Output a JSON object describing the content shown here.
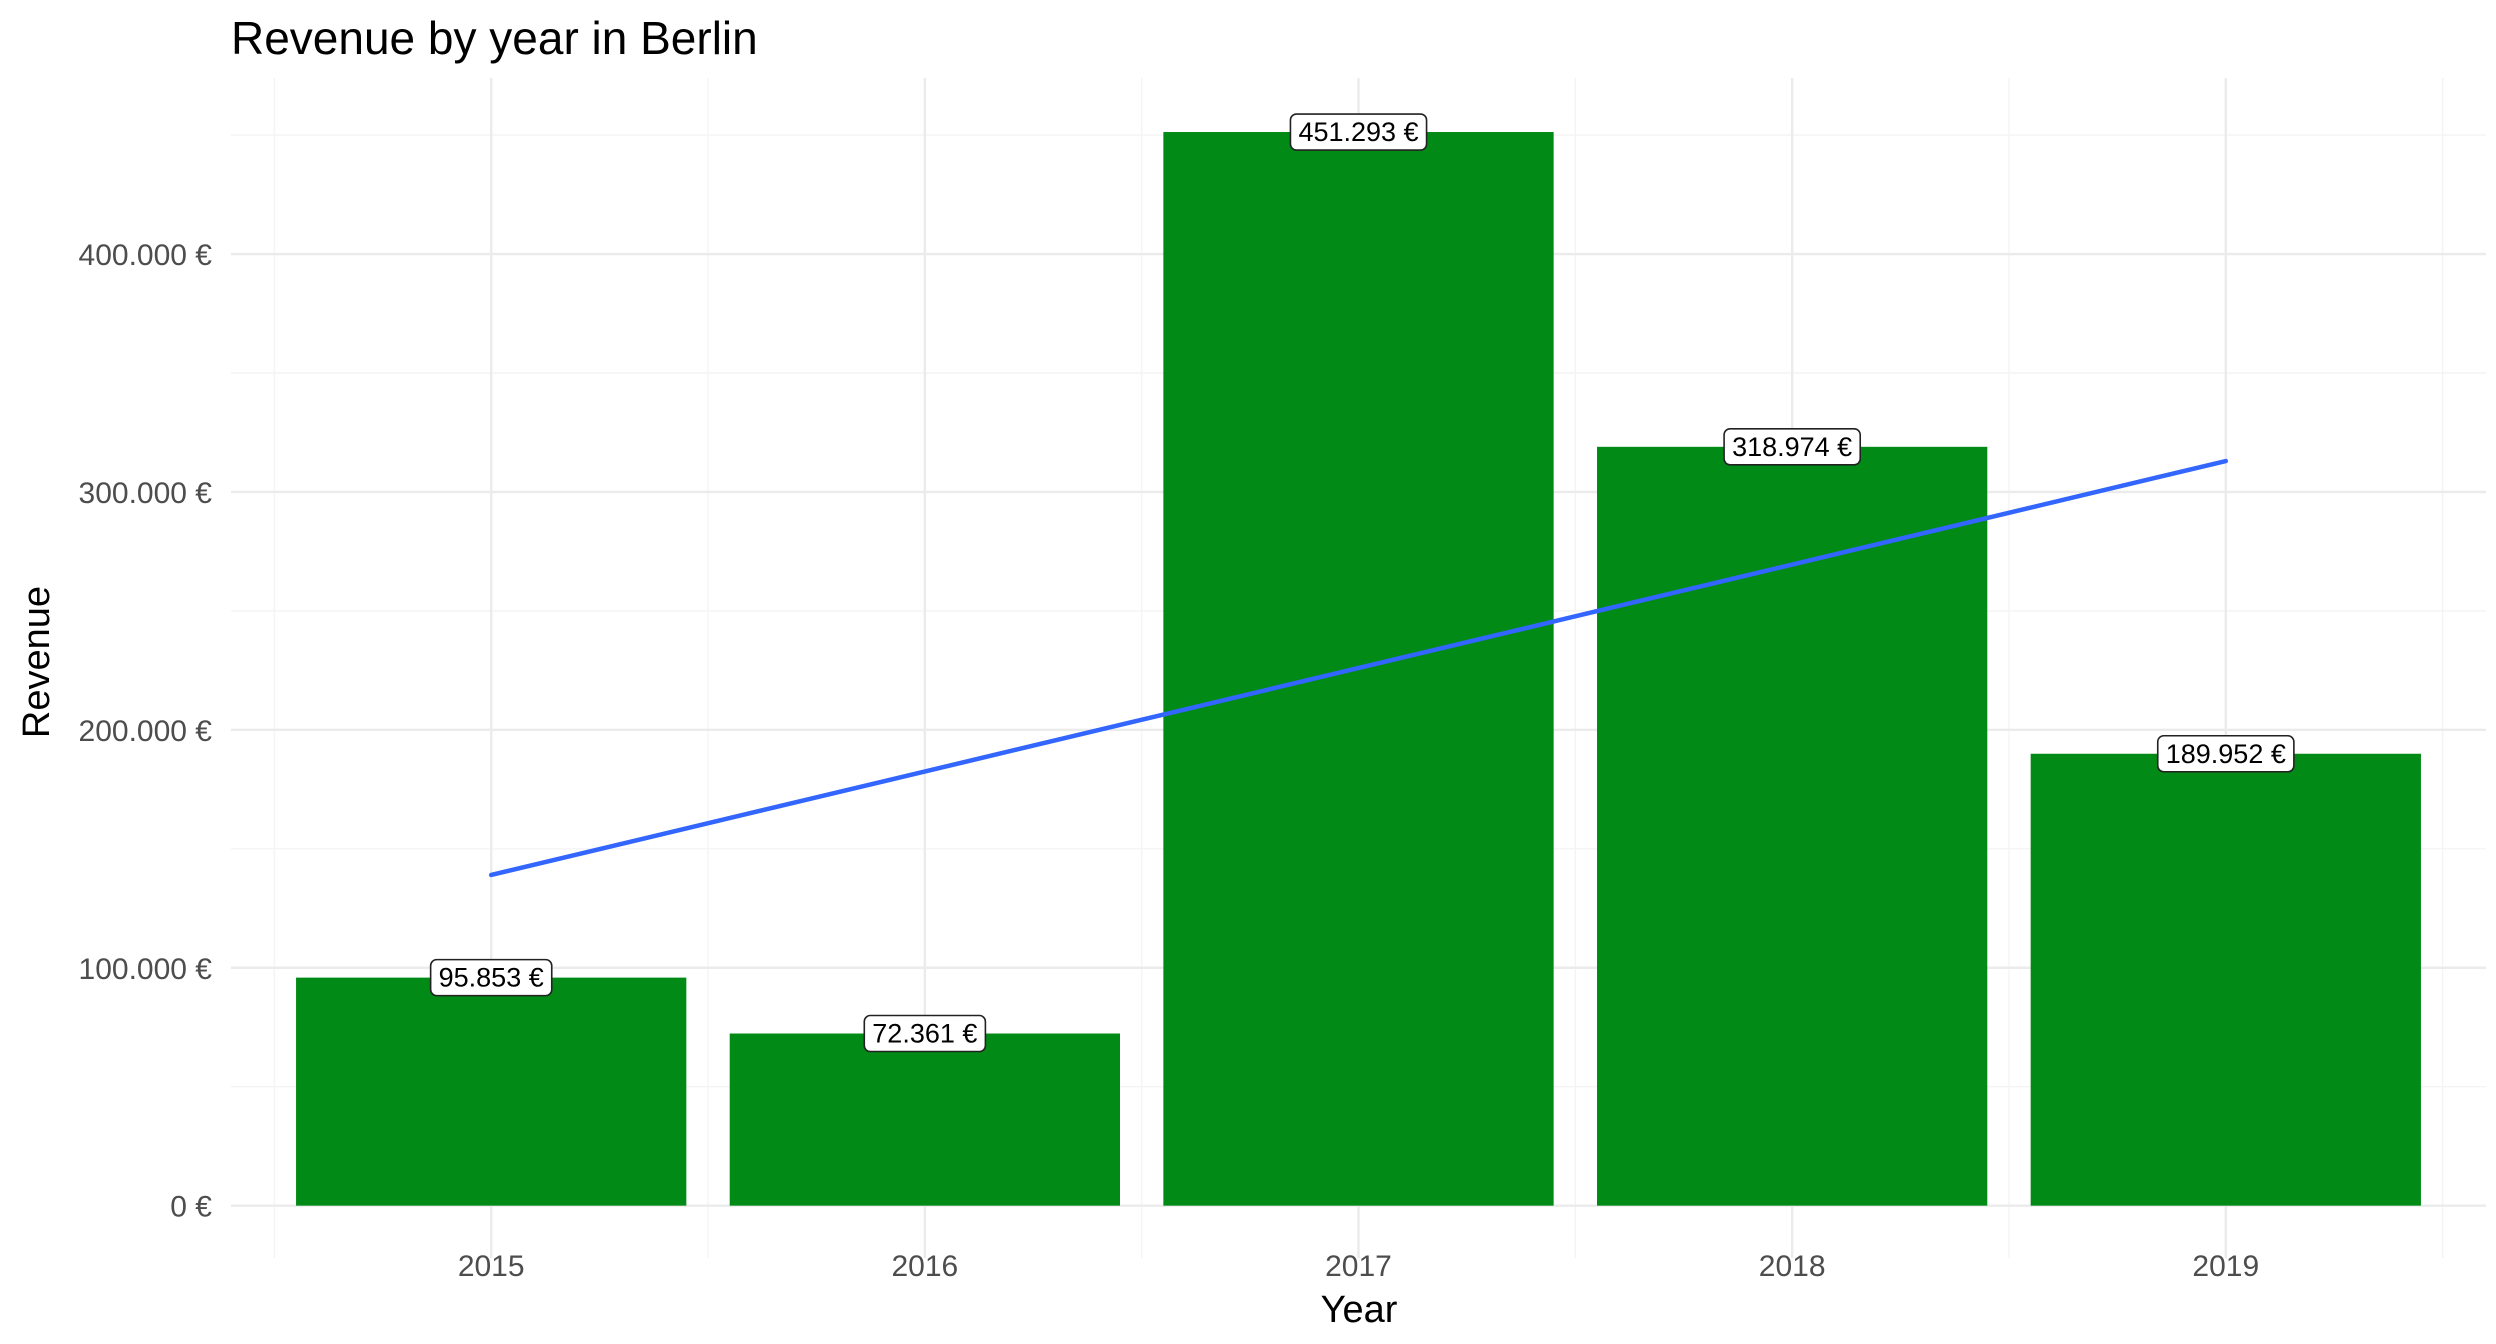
{
  "chart_data": {
    "type": "bar",
    "title": "Revenue by year in Berlin",
    "xlabel": "Year",
    "ylabel": "Revenue",
    "categories": [
      "2015",
      "2016",
      "2017",
      "2018",
      "2019"
    ],
    "values": [
      95853,
      72361,
      451293,
      318974,
      189952
    ],
    "data_labels": [
      "95.853 €",
      "72.361 €",
      "451.293 €",
      "318.974 €",
      "189.952 €"
    ],
    "y_ticks": [
      0,
      100000,
      200000,
      300000,
      400000
    ],
    "y_tick_labels": [
      "0 €",
      "100.000 €",
      "200.000 €",
      "300.000 €",
      "400.000 €"
    ],
    "ylim": [
      -22000,
      474000
    ],
    "grid": true,
    "legend": "none",
    "bar_color": "#028a16",
    "trend_line": {
      "type": "linear",
      "color": "#3366ff",
      "x": [
        "2015",
        "2019"
      ],
      "y": [
        139000,
        313000
      ]
    }
  }
}
